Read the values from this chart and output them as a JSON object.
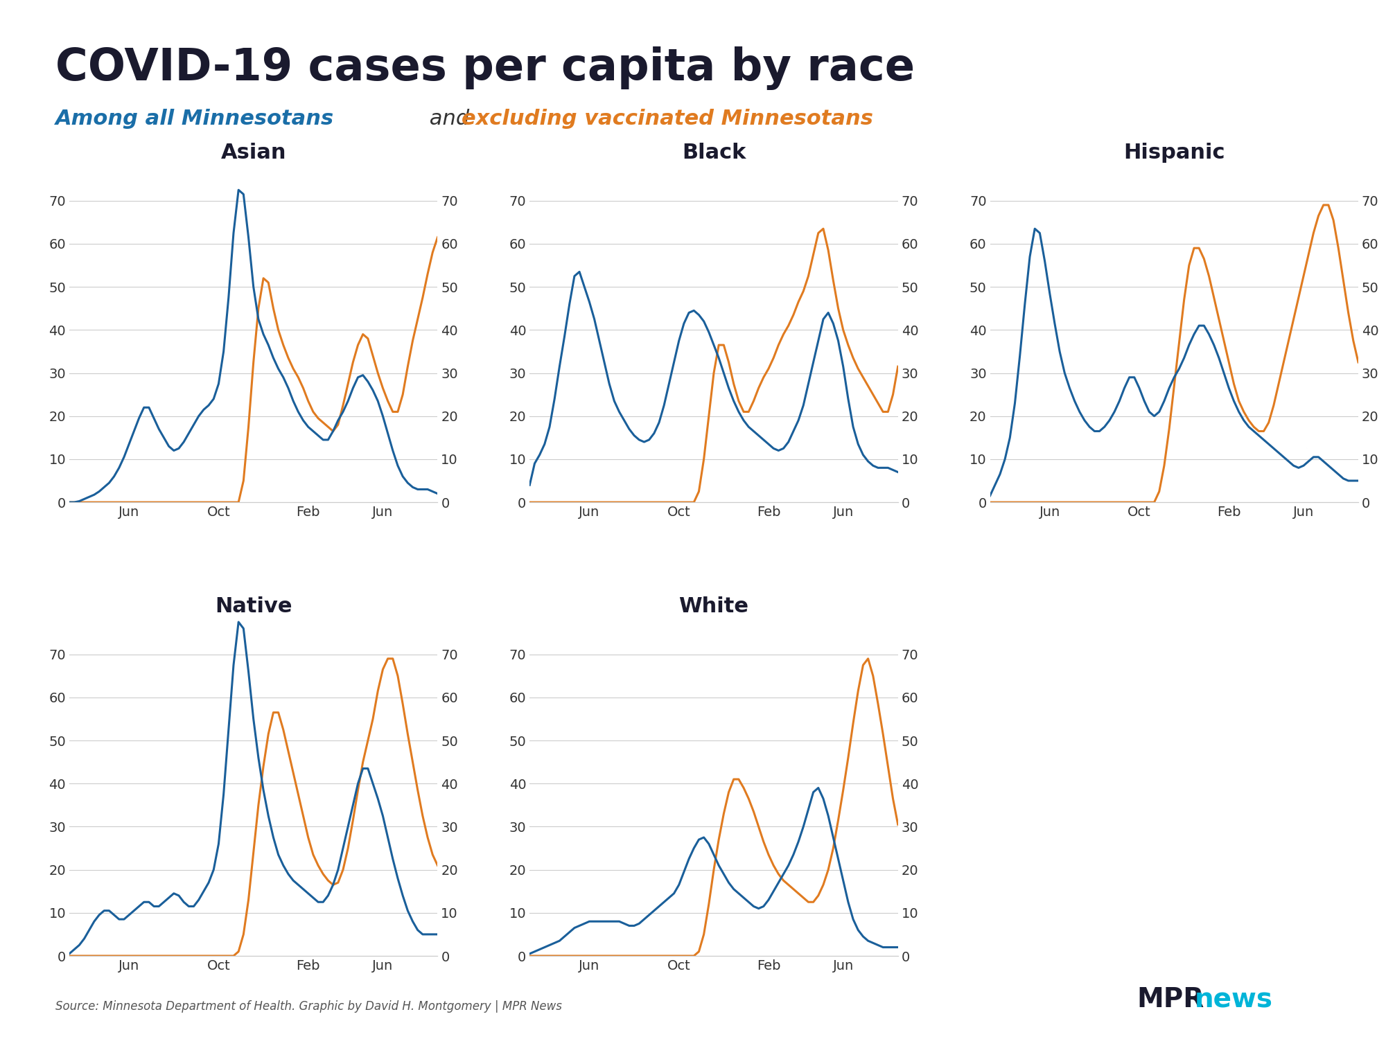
{
  "title": "COVID-19 cases per capita by race",
  "subtitle_blue": "Among all Minnesotans",
  "subtitle_and": " and ",
  "subtitle_orange": "excluding vaccinated Minnesotans",
  "subtitle_color_blue": "#1a6ea8",
  "subtitle_color_orange": "#e07b20",
  "title_color": "#1a1a2e",
  "source_text": "Source: Minnesota Department of Health. Graphic by David H. Montgomery | MPR News",
  "panels": [
    "Asian",
    "Black",
    "Hispanic",
    "Native",
    "White"
  ],
  "blue_color": "#1a5f9a",
  "orange_color": "#e07b20",
  "ylim": [
    0,
    78
  ],
  "yticks": [
    0,
    10,
    20,
    30,
    40,
    50,
    60,
    70
  ],
  "xtick_labels": [
    "Jun",
    "Oct",
    "Feb",
    "Jun"
  ],
  "background_color": "#ffffff",
  "grid_color": "#cccccc",
  "mpr_blue": "#1a1a2e",
  "mpr_cyan": "#00b4d8"
}
